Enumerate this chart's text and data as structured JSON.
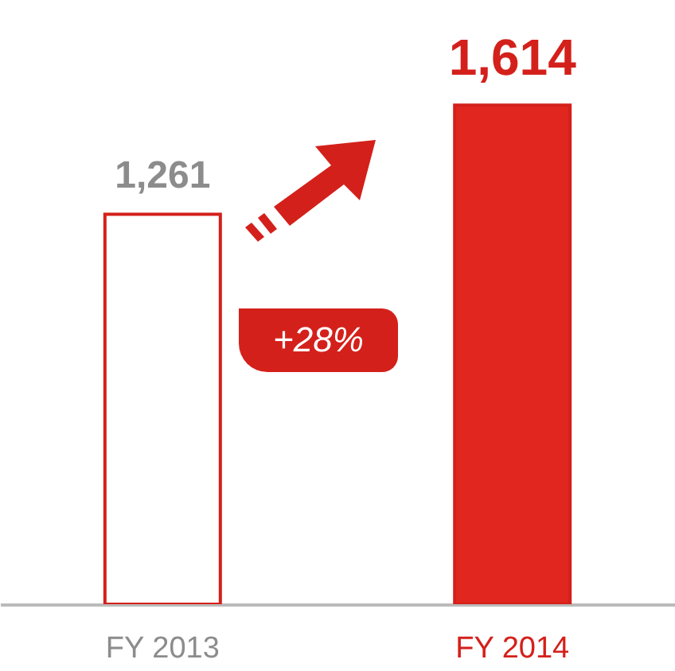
{
  "chart_data": {
    "type": "bar",
    "categories": [
      "FY 2013",
      "FY 2014"
    ],
    "values": [
      1261,
      1614
    ],
    "colors": [
      "#ffffff",
      "#e0261f"
    ],
    "value_labels": [
      "1,261",
      "1,614"
    ],
    "tick_labels": "x",
    "annotations": [
      "+28%"
    ]
  }
}
